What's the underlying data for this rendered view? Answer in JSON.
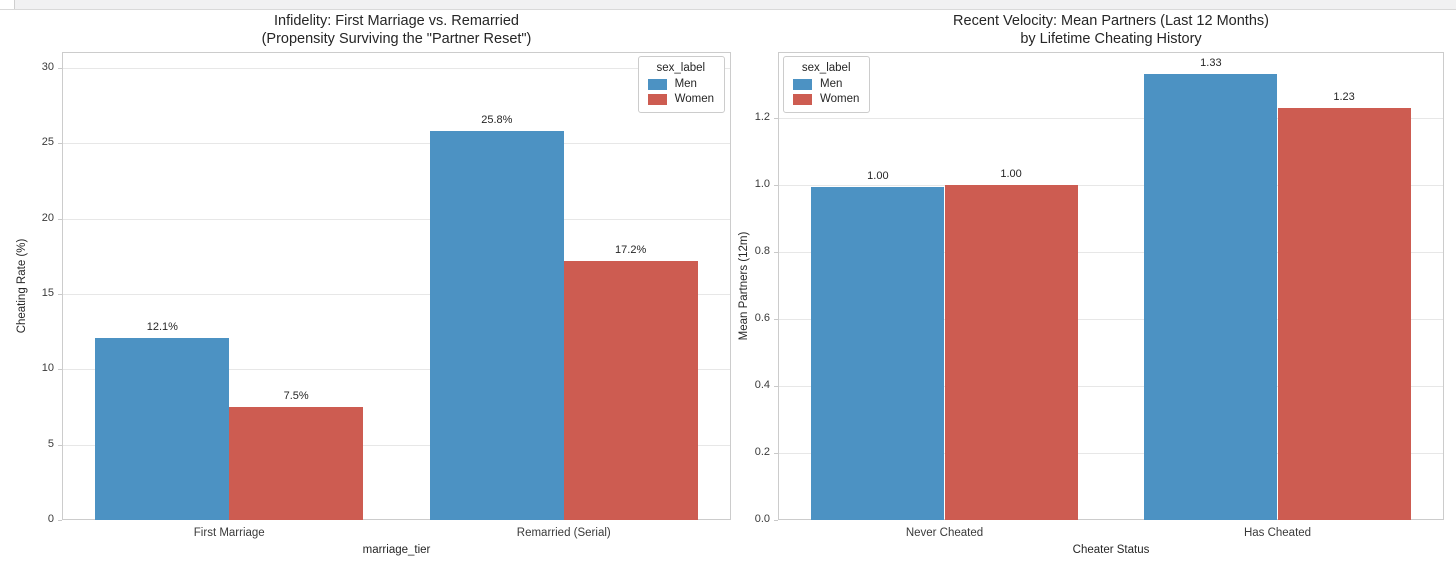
{
  "window": {
    "scrollbar_strip": "horizontal-scrollbar"
  },
  "palette": {
    "men_color": "#4C92C3",
    "women_color": "#CD5C51"
  },
  "chart_data": [
    {
      "type": "bar",
      "title_line1": "Infidelity: First Marriage vs. Remarried",
      "title_line2": "(Propensity Surviving the \"Partner Reset\")",
      "xlabel": "marriage_tier",
      "ylabel": "Cheating Rate (%)",
      "categories": [
        "First Marriage",
        "Remarried (Serial)"
      ],
      "series": [
        {
          "name": "Men",
          "color": "#4C92C3",
          "values": [
            12.1,
            25.8
          ],
          "labels": [
            "12.1%",
            "25.8%"
          ]
        },
        {
          "name": "Women",
          "color": "#CD5C51",
          "values": [
            7.5,
            17.2
          ],
          "labels": [
            "7.5%",
            "17.2%"
          ]
        }
      ],
      "yticks": [
        0,
        5,
        10,
        15,
        20,
        25,
        30
      ],
      "ytick_labels": [
        "0",
        "5",
        "10",
        "15",
        "20",
        "25",
        "30"
      ],
      "ylim": [
        0,
        31.05
      ],
      "grid": true,
      "legend": {
        "title": "sex_label",
        "entries": [
          "Men",
          "Women"
        ],
        "position": "top-right"
      }
    },
    {
      "type": "bar",
      "title_line1": "Recent Velocity: Mean Partners (Last 12 Months)",
      "title_line2": "by Lifetime Cheating History",
      "xlabel": "Cheater Status",
      "ylabel": "Mean Partners (12m)",
      "categories": [
        "Never Cheated",
        "Has Cheated"
      ],
      "series": [
        {
          "name": "Men",
          "color": "#4C92C3",
          "values": [
            0.995,
            1.33
          ],
          "labels": [
            "1.00",
            "1.33"
          ]
        },
        {
          "name": "Women",
          "color": "#CD5C51",
          "values": [
            1.0,
            1.23
          ],
          "labels": [
            "1.00",
            "1.23"
          ]
        }
      ],
      "yticks": [
        0,
        0.2,
        0.4,
        0.6,
        0.8,
        1.0,
        1.2
      ],
      "ytick_labels": [
        "0.0",
        "0.2",
        "0.4",
        "0.6",
        "0.8",
        "1.0",
        "1.2"
      ],
      "ylim": [
        0,
        1.397
      ],
      "grid": true,
      "legend": {
        "title": "sex_label",
        "entries": [
          "Men",
          "Women"
        ],
        "position": "top-left"
      }
    }
  ]
}
